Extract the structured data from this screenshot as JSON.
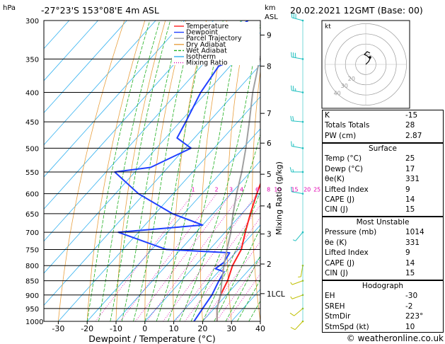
{
  "header": {
    "left_title": "-27°23'S  153°08'E  4m  ASL",
    "right_title": "20.02.2021  12GMT  (Base: 00)",
    "hpa_label": "hPa",
    "km_label": "km",
    "asl_label": "ASL",
    "kt_label": "kt"
  },
  "footer": {
    "credit": "© weatheronline.co.uk"
  },
  "colors": {
    "temperature": "#ff2020",
    "dewpoint": "#2040ff",
    "parcel": "#a0a0a0",
    "dry_adiabat": "#e8a040",
    "wet_adiabat": "#20b020",
    "isotherm": "#30b0f0",
    "mixing_ratio": "#e000b0",
    "wind": "#20c0c0",
    "wind_low": "#c0c000"
  },
  "chart_data": {
    "type": "line",
    "title": "",
    "xlabel": "Dewpoint / Temperature (°C)",
    "ylabel": "hPa",
    "right_label": "Mixing Ratio (g/kg)",
    "xlim": [
      -35,
      40
    ],
    "ylim": [
      1000,
      300
    ],
    "x_ticks": [
      -30,
      -20,
      -10,
      0,
      10,
      20,
      30,
      40
    ],
    "pressure_levels": [
      300,
      350,
      400,
      450,
      500,
      550,
      600,
      650,
      700,
      750,
      800,
      850,
      900,
      950,
      1000
    ],
    "km_ticks": [
      {
        "label": "1LCL",
        "p": 895
      },
      {
        "label": "2",
        "p": 795
      },
      {
        "label": "3",
        "p": 705
      },
      {
        "label": "4",
        "p": 630
      },
      {
        "label": "5",
        "p": 555
      },
      {
        "label": "6",
        "p": 490
      },
      {
        "label": "7",
        "p": 435
      },
      {
        "label": "8",
        "p": 360
      },
      {
        "label": "9",
        "p": 318
      }
    ],
    "mixing_ratio_labels": [
      "1",
      "2",
      "3",
      "4",
      "6",
      "8",
      "10",
      "15",
      "20",
      "25"
    ],
    "mixing_ratio_values": [
      1,
      2,
      3,
      4,
      6,
      8,
      10,
      15,
      20,
      25
    ],
    "legend": [
      "Temperature",
      "Dewpoint",
      "Parcel Trajectory",
      "Dry Adiabat",
      "Wet Adiabat",
      "Isotherm",
      "Mixing Ratio"
    ],
    "series": [
      {
        "name": "Temperature",
        "points": [
          [
            1000,
            25
          ],
          [
            950,
            21
          ],
          [
            900,
            18
          ],
          [
            850,
            16
          ],
          [
            800,
            13
          ],
          [
            750,
            11
          ],
          [
            700,
            7
          ],
          [
            650,
            3
          ],
          [
            600,
            -1
          ],
          [
            550,
            -5
          ],
          [
            520,
            -8
          ],
          [
            500,
            -11
          ],
          [
            450,
            -17
          ],
          [
            400,
            -24
          ],
          [
            350,
            -32
          ],
          [
            300,
            -41
          ]
        ]
      },
      {
        "name": "Dewpoint",
        "points": [
          [
            1000,
            17
          ],
          [
            950,
            16
          ],
          [
            900,
            15
          ],
          [
            850,
            13
          ],
          [
            820,
            12
          ],
          [
            810,
            8
          ],
          [
            790,
            9
          ],
          [
            760,
            8
          ],
          [
            750,
            -15
          ],
          [
            700,
            -37
          ],
          [
            680,
            -10
          ],
          [
            650,
            -24
          ],
          [
            600,
            -42
          ],
          [
            550,
            -57
          ],
          [
            540,
            -46
          ],
          [
            500,
            -38
          ],
          [
            480,
            -46
          ],
          [
            450,
            -48
          ],
          [
            400,
            -52
          ],
          [
            360,
            -54
          ],
          [
            350,
            -50
          ],
          [
            345,
            -56
          ],
          [
            325,
            -62
          ],
          [
            300,
            -58
          ]
        ]
      },
      {
        "name": "Parcel Trajectory",
        "points": [
          [
            1000,
            25
          ],
          [
            950,
            21
          ],
          [
            900,
            18
          ],
          [
            850,
            14
          ],
          [
            800,
            10
          ],
          [
            750,
            6
          ],
          [
            700,
            2
          ],
          [
            650,
            -3
          ],
          [
            600,
            -8
          ],
          [
            550,
            -13
          ],
          [
            500,
            -19
          ],
          [
            450,
            -26
          ],
          [
            400,
            -34
          ],
          [
            350,
            -42
          ],
          [
            300,
            -50
          ]
        ]
      }
    ],
    "wind_barbs": [
      {
        "p": 1000,
        "dir": 223,
        "spd": 10
      },
      {
        "p": 950,
        "dir": 230,
        "spd": 10
      },
      {
        "p": 900,
        "dir": 250,
        "spd": 5
      },
      {
        "p": 850,
        "dir": 250,
        "spd": 5
      },
      {
        "p": 800,
        "dir": 190,
        "spd": 5
      },
      {
        "p": 700,
        "dir": 220,
        "spd": 5
      },
      {
        "p": 600,
        "dir": 280,
        "spd": 10
      },
      {
        "p": 550,
        "dir": 270,
        "spd": 15
      },
      {
        "p": 500,
        "dir": 280,
        "spd": 15
      },
      {
        "p": 450,
        "dir": 275,
        "spd": 20
      },
      {
        "p": 400,
        "dir": 280,
        "spd": 25
      },
      {
        "p": 350,
        "dir": 280,
        "spd": 30
      },
      {
        "p": 300,
        "dir": 285,
        "spd": 30
      }
    ],
    "hodograph": {
      "ring_labels": [
        "40",
        "30",
        "20"
      ],
      "points": [
        [
          0,
          0
        ],
        [
          2,
          2
        ],
        [
          3,
          4
        ],
        [
          1,
          6
        ],
        [
          -1,
          7
        ],
        [
          1,
          9
        ],
        [
          3,
          8
        ]
      ],
      "storm_motion": [
        3,
        5
      ]
    }
  },
  "indices": [
    {
      "label": "K",
      "value": "-15"
    },
    {
      "label": "Totals Totals",
      "value": "28"
    },
    {
      "label": "PW (cm)",
      "value": "2.87"
    }
  ],
  "surface": {
    "title": "Surface",
    "rows": [
      {
        "label": "Temp (°C)",
        "value": "25"
      },
      {
        "label": "Dewp (°C)",
        "value": "17"
      },
      {
        "label": "θe(K)",
        "value": "331"
      },
      {
        "label": "Lifted Index",
        "value": "9"
      },
      {
        "label": "CAPE (J)",
        "value": "14"
      },
      {
        "label": "CIN (J)",
        "value": "15"
      }
    ]
  },
  "most_unstable": {
    "title": "Most Unstable",
    "rows": [
      {
        "label": "Pressure (mb)",
        "value": "1014"
      },
      {
        "label": "θe (K)",
        "value": "331"
      },
      {
        "label": "Lifted Index",
        "value": "9"
      },
      {
        "label": "CAPE (J)",
        "value": "14"
      },
      {
        "label": "CIN (J)",
        "value": "15"
      }
    ]
  },
  "hodograph_table": {
    "title": "Hodograph",
    "rows": [
      {
        "label": "EH",
        "value": "-30"
      },
      {
        "label": "SREH",
        "value": "-2"
      },
      {
        "label": "StmDir",
        "value": "223°"
      },
      {
        "label": "StmSpd (kt)",
        "value": "10"
      }
    ]
  }
}
